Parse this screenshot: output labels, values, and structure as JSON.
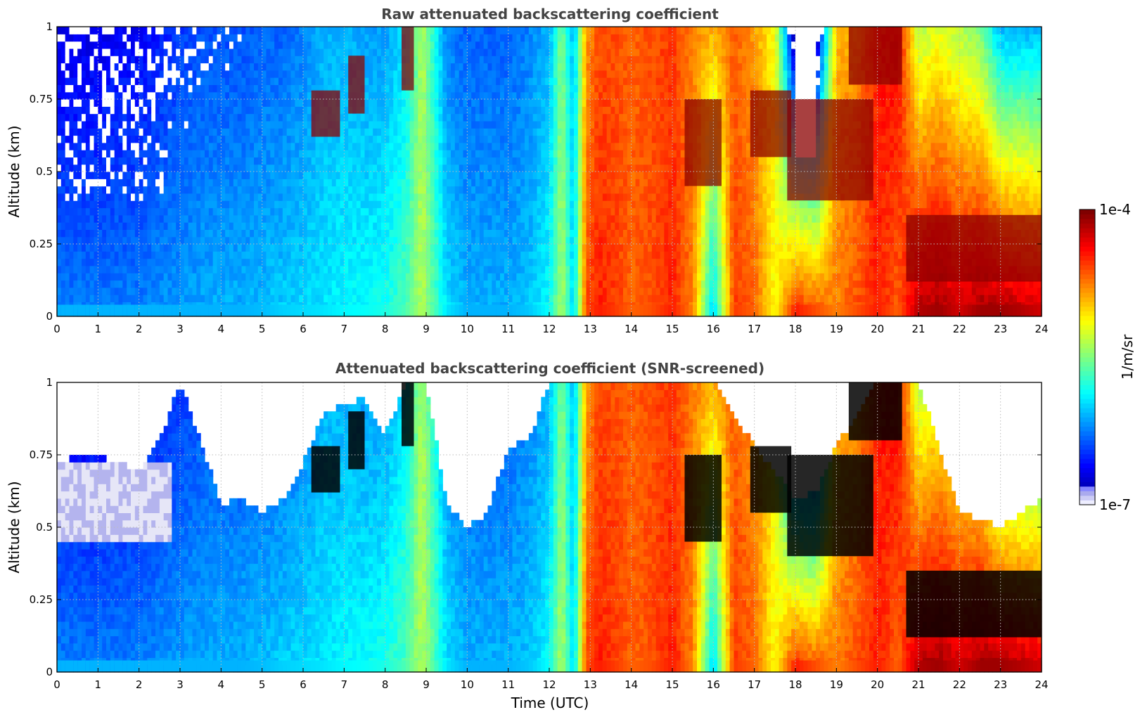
{
  "chart_data": [
    {
      "type": "heatmap",
      "title": "Raw attenuated backscattering coefficient",
      "xlabel": "",
      "ylabel": "Altitude (km)",
      "xlim": [
        0,
        24
      ],
      "ylim": [
        0,
        1
      ],
      "xticks": [
        "0",
        "1",
        "2",
        "3",
        "4",
        "5",
        "6",
        "7",
        "8",
        "9",
        "10",
        "11",
        "12",
        "13",
        "14",
        "15",
        "16",
        "17",
        "18",
        "19",
        "20",
        "21",
        "22",
        "23",
        "24"
      ],
      "yticks": [
        "0",
        "0.25",
        "0.5",
        "0.75",
        "1"
      ],
      "grid": true,
      "screened": false,
      "column_intensity_0to1": {
        "time_utc": [
          0,
          0.5,
          1,
          1.5,
          2,
          2.5,
          3,
          3.5,
          4,
          4.5,
          5,
          5.5,
          6,
          6.5,
          7,
          7.5,
          8,
          8.5,
          8.9,
          9.2,
          9.5,
          10,
          10.5,
          11,
          11.5,
          12,
          12.3,
          12.6,
          12.9,
          13.2,
          13.6,
          14,
          14.5,
          15,
          15.5,
          16,
          16.5,
          17,
          17.5,
          18,
          18.5,
          19,
          19.5,
          20,
          20.5,
          21,
          21.5,
          22,
          22.5,
          23,
          23.5,
          24
        ],
        "low_altitude": [
          0.25,
          0.25,
          0.25,
          0.25,
          0.25,
          0.27,
          0.28,
          0.29,
          0.3,
          0.3,
          0.31,
          0.33,
          0.34,
          0.35,
          0.37,
          0.38,
          0.4,
          0.45,
          0.55,
          0.45,
          0.35,
          0.3,
          0.3,
          0.3,
          0.32,
          0.38,
          0.55,
          0.33,
          0.8,
          0.85,
          0.82,
          0.78,
          0.8,
          0.85,
          0.75,
          0.32,
          0.82,
          0.78,
          0.62,
          0.85,
          0.8,
          0.75,
          0.8,
          0.85,
          0.78,
          0.95,
          0.97,
          0.92,
          0.97,
          0.97,
          0.95,
          0.92
        ],
        "high_altitude": [
          0.1,
          0.1,
          0.1,
          0.12,
          0.12,
          0.15,
          0.18,
          0.2,
          0.2,
          0.2,
          0.22,
          0.22,
          0.25,
          0.3,
          0.3,
          0.28,
          0.28,
          0.35,
          0.55,
          0.4,
          0.25,
          0.22,
          0.22,
          0.22,
          0.25,
          0.3,
          0.5,
          0.3,
          0.72,
          0.8,
          0.8,
          0.78,
          0.8,
          0.82,
          0.75,
          0.7,
          0.78,
          0.72,
          0.62,
          0.0,
          0.0,
          0.7,
          0.72,
          0.85,
          0.88,
          0.55,
          0.6,
          0.55,
          0.5,
          0.3,
          0.3,
          0.3
        ]
      },
      "cloud_layers_km": [
        {
          "t0": 6.2,
          "t1": 6.9,
          "base": 0.62,
          "top": 0.78
        },
        {
          "t0": 7.1,
          "t1": 7.5,
          "base": 0.7,
          "top": 0.9
        },
        {
          "t0": 8.4,
          "t1": 8.7,
          "base": 0.78,
          "top": 1.0
        },
        {
          "t0": 15.3,
          "t1": 16.2,
          "base": 0.45,
          "top": 0.75
        },
        {
          "t0": 16.9,
          "t1": 17.9,
          "base": 0.55,
          "top": 0.78
        },
        {
          "t0": 17.8,
          "t1": 19.9,
          "base": 0.4,
          "top": 0.75
        },
        {
          "t0": 19.3,
          "t1": 20.6,
          "base": 0.8,
          "top": 1.0
        },
        {
          "t0": 20.7,
          "t1": 24.0,
          "base": 0.12,
          "top": 0.35
        }
      ]
    },
    {
      "type": "heatmap",
      "title": "Attenuated backscattering coefficient (SNR-screened)",
      "xlabel": "Time (UTC)",
      "ylabel": "Altitude (km)",
      "xlim": [
        0,
        24
      ],
      "ylim": [
        0,
        1
      ],
      "xticks": [
        "0",
        "1",
        "2",
        "3",
        "4",
        "5",
        "6",
        "7",
        "8",
        "9",
        "10",
        "11",
        "12",
        "13",
        "14",
        "15",
        "16",
        "17",
        "18",
        "19",
        "20",
        "21",
        "22",
        "23",
        "24"
      ],
      "yticks": [
        "0",
        "0.25",
        "0.5",
        "0.75",
        "1"
      ],
      "grid": true,
      "screened": true,
      "screen_top_km": {
        "time_utc": [
          0,
          0.5,
          1,
          1.5,
          2,
          2.5,
          3,
          3.5,
          4,
          4.5,
          5,
          5.5,
          6,
          6.5,
          7,
          7.5,
          8,
          8.5,
          9,
          9.5,
          10,
          10.5,
          11,
          11.5,
          12,
          12.5,
          13,
          14,
          15,
          16,
          17,
          18,
          18.5,
          19,
          20,
          21,
          22,
          23,
          24
        ],
        "top": [
          0.72,
          0.75,
          0.75,
          0.72,
          0.7,
          0.8,
          1.0,
          0.8,
          0.58,
          0.6,
          0.55,
          0.6,
          0.72,
          0.9,
          0.92,
          0.95,
          0.82,
          1.0,
          1.0,
          0.58,
          0.5,
          0.55,
          0.78,
          0.8,
          1.0,
          1.0,
          1.0,
          1.0,
          1.0,
          1.0,
          0.78,
          0.6,
          0.62,
          0.78,
          1.0,
          1.0,
          0.55,
          0.5,
          0.6
        ]
      }
    }
  ],
  "colorbar": {
    "max_label": "1e-4",
    "min_label": "1e-7",
    "unit_label": "1/m/sr",
    "colormap": "jet",
    "scale": "log"
  },
  "colors": {
    "screened_peak": "#000000",
    "grid": "#bbbbbb",
    "title": "#444444"
  }
}
